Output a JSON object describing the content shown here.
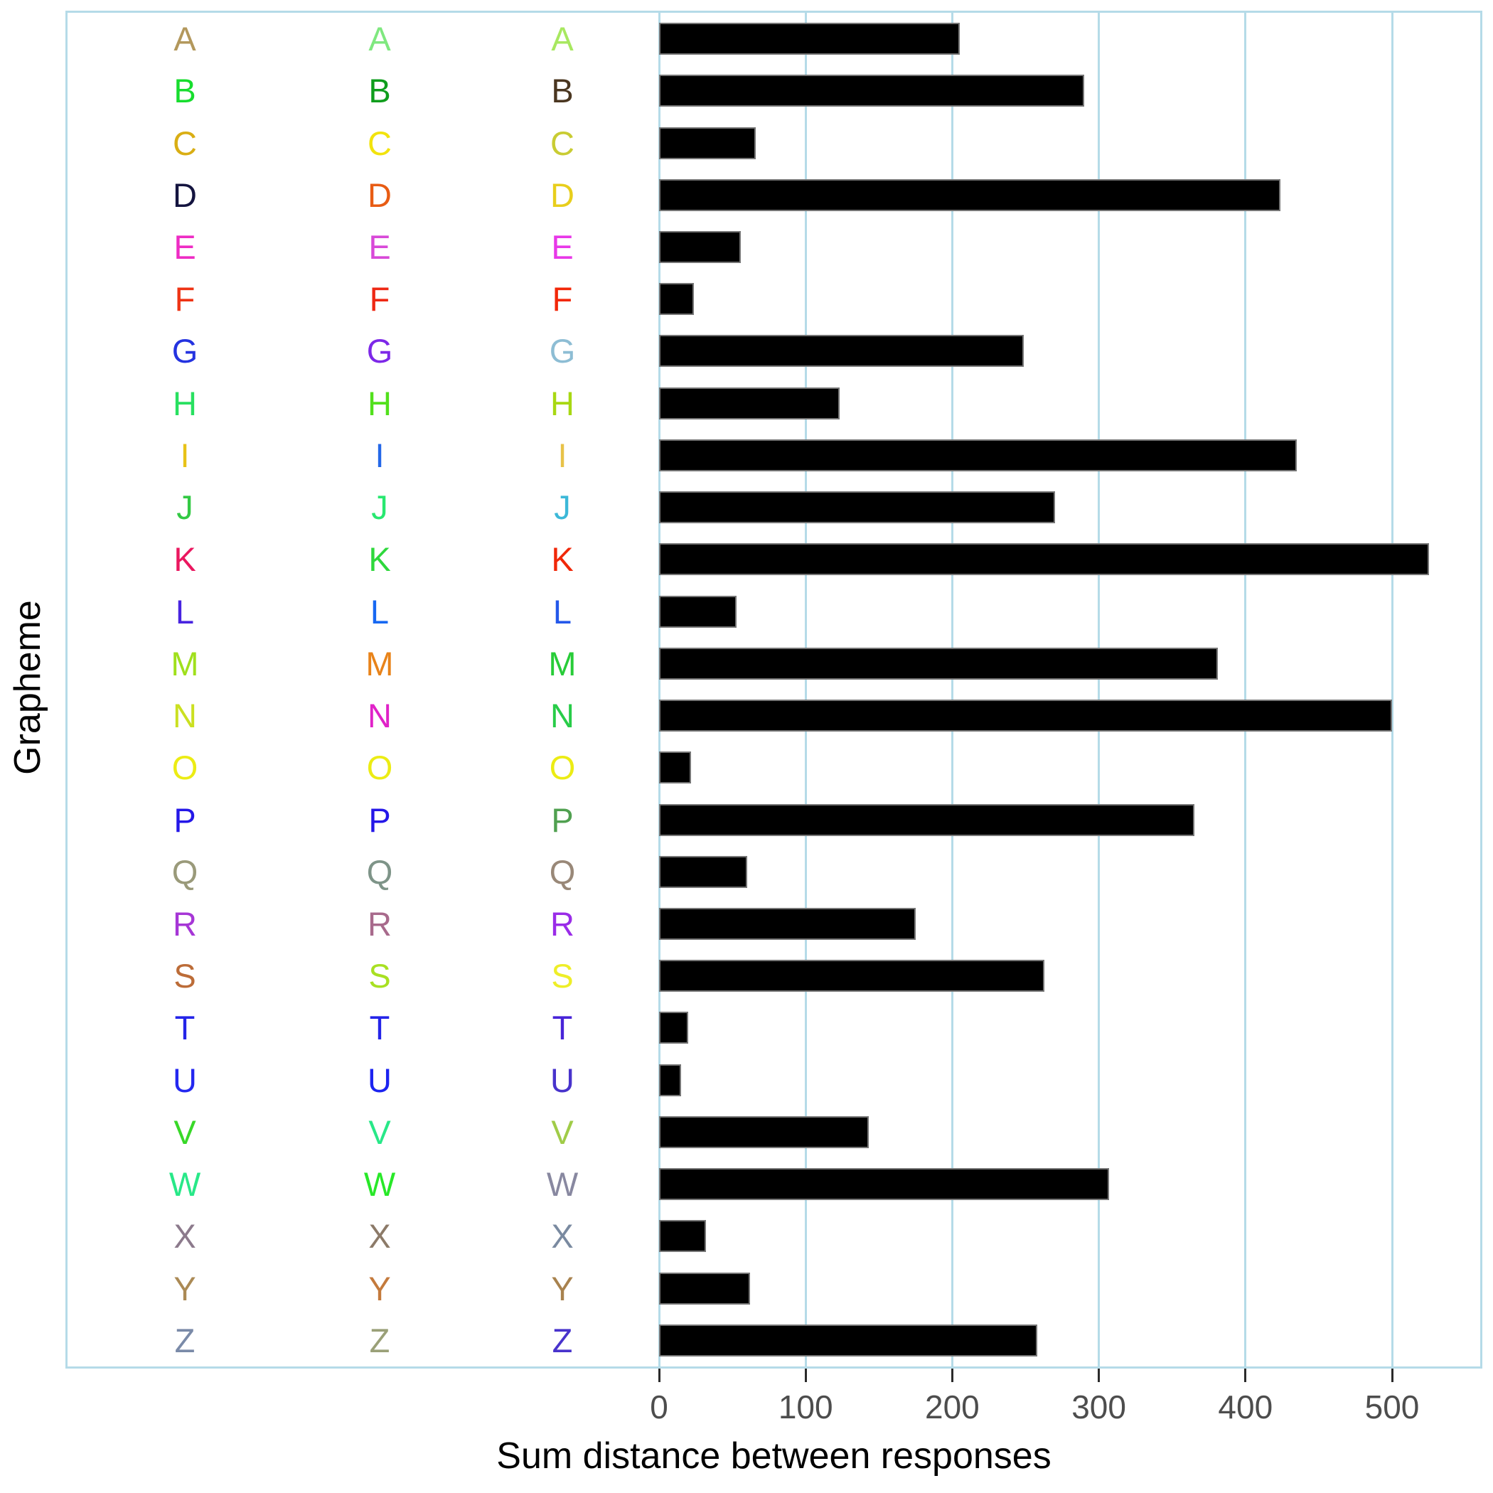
{
  "chart_data": {
    "type": "bar",
    "orientation": "horizontal",
    "title": "",
    "xlabel": "Sum distance between responses",
    "ylabel": "Grapheme",
    "xlim": [
      0,
      560
    ],
    "xticks": [
      0,
      100,
      200,
      300,
      400,
      500
    ],
    "xtick_labels": [
      "0",
      "100",
      "200",
      "300",
      "400",
      "500"
    ],
    "grid": "vertical gridlines only, drawn behind bars",
    "legend": "none",
    "colors": {
      "bar_fill": "#000000",
      "bar_border": "#757575",
      "gridline": "#b5dbe8",
      "panel_border": "#b5dbe8",
      "tick_mark": "#2b2b2b",
      "tick_label": "#4d4d4d",
      "axis_title": "#000000"
    },
    "letter_column_count": 3,
    "categories": [
      "A",
      "B",
      "C",
      "D",
      "E",
      "F",
      "G",
      "H",
      "I",
      "J",
      "K",
      "L",
      "M",
      "N",
      "O",
      "P",
      "Q",
      "R",
      "S",
      "T",
      "U",
      "V",
      "W",
      "X",
      "Y",
      "Z"
    ],
    "values": [
      205,
      290,
      66,
      424,
      56,
      24,
      249,
      123,
      435,
      270,
      525,
      53,
      381,
      500,
      22,
      365,
      60,
      175,
      263,
      20,
      15,
      143,
      307,
      32,
      62,
      258
    ],
    "rows": [
      {
        "letter": "A",
        "value": 205,
        "colors": [
          "#b3985c",
          "#7fe87f",
          "#a8e860"
        ]
      },
      {
        "letter": "B",
        "value": 290,
        "colors": [
          "#17dd2e",
          "#0f9d1c",
          "#4a3620"
        ]
      },
      {
        "letter": "C",
        "value": 66,
        "colors": [
          "#d9ae14",
          "#f2e30d",
          "#c9cc33"
        ]
      },
      {
        "letter": "D",
        "value": 424,
        "colors": [
          "#14143f",
          "#e85c14",
          "#e8ce1c"
        ]
      },
      {
        "letter": "E",
        "value": 56,
        "colors": [
          "#ee2cc4",
          "#d849d8",
          "#e838e8"
        ]
      },
      {
        "letter": "F",
        "value": 24,
        "colors": [
          "#ee3314",
          "#ee2814",
          "#f22708"
        ]
      },
      {
        "letter": "G",
        "value": 249,
        "colors": [
          "#2433e0",
          "#7d28e8",
          "#8dbdd4"
        ]
      },
      {
        "letter": "H",
        "value": 123,
        "colors": [
          "#28e060",
          "#52e01c",
          "#a8d813"
        ]
      },
      {
        "letter": "I",
        "value": 435,
        "colors": [
          "#e8c217",
          "#2468e8",
          "#e8c248"
        ]
      },
      {
        "letter": "J",
        "value": 270,
        "colors": [
          "#33c944",
          "#28e870",
          "#3cb8d8"
        ]
      },
      {
        "letter": "K",
        "value": 525,
        "colors": [
          "#ea175f",
          "#2ed83c",
          "#f02708"
        ]
      },
      {
        "letter": "L",
        "value": 53,
        "colors": [
          "#4824e0",
          "#1768f2",
          "#2458ea"
        ]
      },
      {
        "letter": "M",
        "value": 381,
        "colors": [
          "#a0e01c",
          "#e8831a",
          "#28cc38"
        ]
      },
      {
        "letter": "N",
        "value": 500,
        "colors": [
          "#cbe021",
          "#e022c8",
          "#28cc48"
        ]
      },
      {
        "letter": "O",
        "value": 22,
        "colors": [
          "#ecec14",
          "#ecec14",
          "#ecec14"
        ]
      },
      {
        "letter": "P",
        "value": 365,
        "colors": [
          "#2417e8",
          "#2417e8",
          "#50a050"
        ]
      },
      {
        "letter": "Q",
        "value": 60,
        "colors": [
          "#9a9a7a",
          "#7e9488",
          "#998878"
        ]
      },
      {
        "letter": "R",
        "value": 175,
        "colors": [
          "#a636d6",
          "#a86a8c",
          "#9a2ce8"
        ]
      },
      {
        "letter": "S",
        "value": 263,
        "colors": [
          "#bc6c38",
          "#a8e022",
          "#eeee28"
        ]
      },
      {
        "letter": "T",
        "value": 20,
        "colors": [
          "#2424e8",
          "#2424e8",
          "#4824d8"
        ]
      },
      {
        "letter": "U",
        "value": 15,
        "colors": [
          "#2428f0",
          "#1c24f0",
          "#4833cc"
        ]
      },
      {
        "letter": "V",
        "value": 143,
        "colors": [
          "#38d828",
          "#28e888",
          "#a0cc48"
        ]
      },
      {
        "letter": "W",
        "value": 307,
        "colors": [
          "#28e888",
          "#28e828",
          "#8888a0"
        ]
      },
      {
        "letter": "X",
        "value": 32,
        "colors": [
          "#8c7a8c",
          "#8c7a68",
          "#7a8aa0"
        ]
      },
      {
        "letter": "Y",
        "value": 62,
        "colors": [
          "#ab8a55",
          "#c47a3c",
          "#a8824e"
        ]
      },
      {
        "letter": "Z",
        "value": 258,
        "colors": [
          "#7a8aa8",
          "#9aa078",
          "#4833cc"
        ]
      }
    ]
  }
}
